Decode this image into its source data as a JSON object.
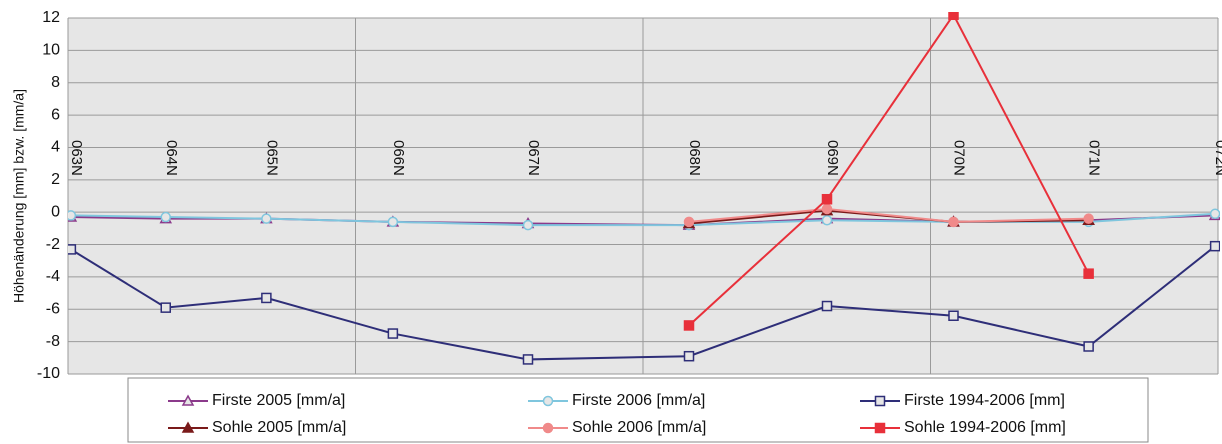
{
  "chart_data": {
    "type": "line",
    "y_label": "Höhenänderung [mm] bzw. [mm/a]",
    "x_labels": [
      "063N",
      "064N",
      "065N",
      "066N",
      "067N",
      "068N",
      "069N",
      "070N",
      "071N",
      "072N"
    ],
    "x": [
      0.01,
      0.34,
      0.69,
      1.13,
      1.6,
      2.16,
      2.64,
      3.08,
      3.55,
      3.99
    ],
    "xlim": [
      0,
      4
    ],
    "xticks": [
      0,
      1,
      2,
      3,
      4
    ],
    "ylim": [
      -10,
      12
    ],
    "yticks": [
      -10,
      -8,
      -6,
      -4,
      -2,
      0,
      2,
      4,
      6,
      8,
      10,
      12
    ],
    "grid": true,
    "series": [
      {
        "name": "Firste 2005 [mm/a]",
        "color": "#8b3a8b",
        "marker": "triangle-open",
        "values": [
          -0.3,
          -0.4,
          -0.4,
          -0.6,
          -0.7,
          -0.8,
          -0.4,
          -0.6,
          -0.5,
          -0.2
        ]
      },
      {
        "name": "Firste 2006 [mm/a]",
        "color": "#7fc6de",
        "marker": "circle-open",
        "values": [
          -0.2,
          -0.3,
          -0.4,
          -0.6,
          -0.8,
          -0.8,
          -0.5,
          -0.6,
          -0.6,
          -0.1
        ]
      },
      {
        "name": "Firste 1994-2006 [mm]",
        "color": "#2e2e78",
        "marker": "square-open",
        "values": [
          -2.3,
          -5.9,
          -5.3,
          -7.5,
          -9.1,
          -8.9,
          -5.8,
          -6.4,
          -8.3,
          -2.1
        ]
      },
      {
        "name": "Sohle 2005 [mm/a]",
        "color": "#7a1a1a",
        "marker": "triangle",
        "values": [
          null,
          null,
          null,
          null,
          null,
          -0.7,
          0.1,
          -0.6,
          -0.5,
          null
        ]
      },
      {
        "name": "Sohle 2006 [mm/a]",
        "color": "#f08a8a",
        "marker": "circle",
        "values": [
          null,
          null,
          null,
          null,
          null,
          -0.6,
          0.2,
          -0.6,
          -0.4,
          null
        ]
      },
      {
        "name": "Sohle 1994-2006 [mm]",
        "color": "#e8303a",
        "marker": "square",
        "values": [
          null,
          null,
          null,
          null,
          null,
          -7.0,
          0.8,
          12.2,
          -3.8,
          null
        ]
      }
    ]
  }
}
